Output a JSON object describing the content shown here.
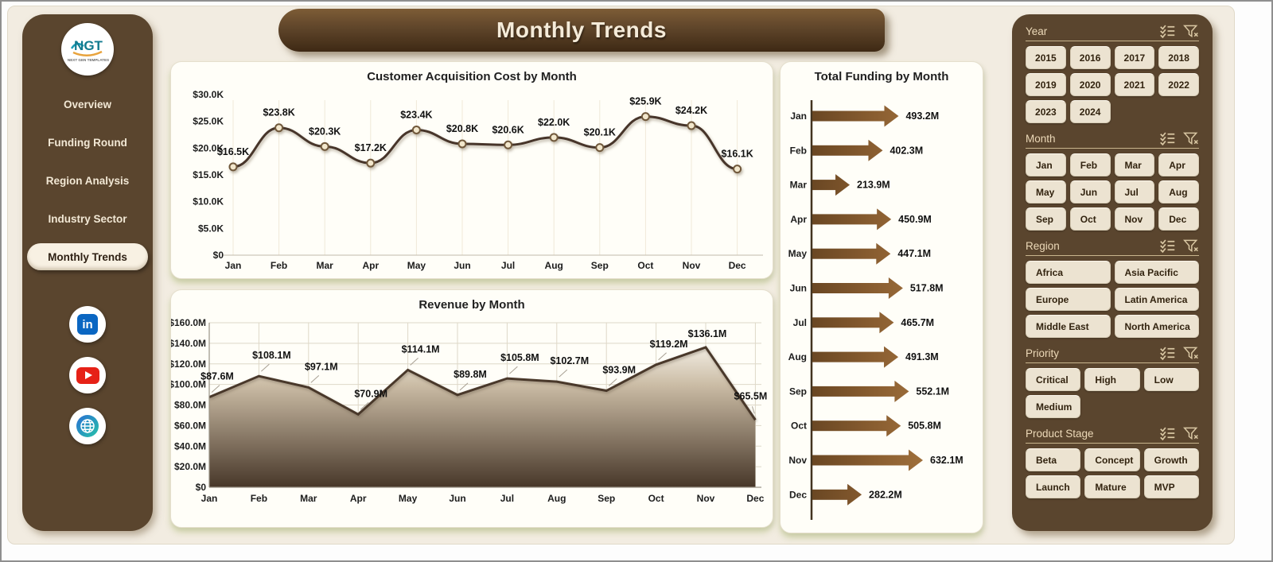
{
  "banner": {
    "title": "Monthly Trends"
  },
  "logo": {
    "text": "NGT",
    "caption": "NEXT GEN TEMPLATES"
  },
  "sidebar": {
    "items": [
      {
        "label": "Overview",
        "active": false
      },
      {
        "label": "Funding Round",
        "active": false
      },
      {
        "label": "Region Analysis",
        "active": false
      },
      {
        "label": "Industry Sector",
        "active": false
      },
      {
        "label": "Monthly Trends",
        "active": true
      }
    ],
    "social": [
      {
        "name": "linkedin",
        "glyph": "in"
      },
      {
        "name": "youtube"
      },
      {
        "name": "website"
      }
    ]
  },
  "filters": {
    "sections": [
      {
        "name": "Year",
        "cols": 4,
        "centered": true,
        "options": [
          "2015",
          "2016",
          "2017",
          "2018",
          "2019",
          "2020",
          "2021",
          "2022",
          "2023",
          "2024"
        ]
      },
      {
        "name": "Month",
        "cols": 4,
        "centered": false,
        "options": [
          "Jan",
          "Feb",
          "Mar",
          "Apr",
          "May",
          "Jun",
          "Jul",
          "Aug",
          "Sep",
          "Oct",
          "Nov",
          "Dec"
        ]
      },
      {
        "name": "Region",
        "cols": 2,
        "centered": false,
        "options": [
          "Africa",
          "Asia Pacific",
          "Europe",
          "Latin America",
          "Middle East",
          "North America"
        ]
      },
      {
        "name": "Priority",
        "cols": 3,
        "centered": false,
        "options": [
          "Critical",
          "High",
          "Low",
          "Medium"
        ]
      },
      {
        "name": "Product Stage",
        "cols": 3,
        "centered": false,
        "options": [
          "Beta",
          "Concept",
          "Growth",
          "Launch",
          "Mature",
          "MVP"
        ]
      }
    ]
  },
  "chart_data": [
    {
      "type": "line",
      "title": "Customer Acquisition Cost by Month",
      "categories": [
        "Jan",
        "Feb",
        "Mar",
        "Apr",
        "May",
        "Jun",
        "Jul",
        "Aug",
        "Sep",
        "Oct",
        "Nov",
        "Dec"
      ],
      "values": [
        16.5,
        23.8,
        20.3,
        17.2,
        23.4,
        20.8,
        20.6,
        22.0,
        20.1,
        25.9,
        24.2,
        16.1
      ],
      "value_labels": [
        "$16.5K",
        "$23.8K",
        "$20.3K",
        "$17.2K",
        "$23.4K",
        "$20.8K",
        "$20.6K",
        "$22.0K",
        "$20.1K",
        "$25.9K",
        "$24.2K",
        "$16.1K"
      ],
      "unit": "USD thousands",
      "y_ticks": [
        "$0",
        "$5.0K",
        "$10.0K",
        "$15.0K",
        "$20.0K",
        "$25.0K",
        "$30.0K"
      ],
      "ylim": [
        0,
        30
      ],
      "grid": "vertical",
      "line_color": "#46342a",
      "marker_fill": "#f2e7cc"
    },
    {
      "type": "area",
      "title": "Revenue by Month",
      "categories": [
        "Jan",
        "Feb",
        "Mar",
        "Apr",
        "May",
        "Jun",
        "Jul",
        "Aug",
        "Sep",
        "Oct",
        "Nov",
        "Dec"
      ],
      "values": [
        87.6,
        108.1,
        97.1,
        70.9,
        114.1,
        89.8,
        105.8,
        102.7,
        93.9,
        119.2,
        136.1,
        65.5
      ],
      "value_labels": [
        "$87.6M",
        "$108.1M",
        "$97.1M",
        "$70.9M",
        "$114.1M",
        "$89.8M",
        "$105.8M",
        "$102.7M",
        "$93.9M",
        "$119.2M",
        "$136.1M",
        "$65.5M"
      ],
      "unit": "USD millions",
      "y_ticks": [
        "$0",
        "$20.0M",
        "$40.0M",
        "$60.0M",
        "$80.0M",
        "$100.0M",
        "$120.0M",
        "$140.0M",
        "$160.0M"
      ],
      "ylim": [
        0,
        160
      ],
      "grid": "both",
      "line_color": "#4a382b",
      "fill_gradient": [
        "#fbf8f1",
        "#cabba4",
        "#473729"
      ]
    },
    {
      "type": "bar",
      "orientation": "horizontal",
      "title": "Total Funding by Month",
      "categories": [
        "Jan",
        "Feb",
        "Mar",
        "Apr",
        "May",
        "Jun",
        "Jul",
        "Aug",
        "Sep",
        "Oct",
        "Nov",
        "Dec"
      ],
      "values": [
        493.2,
        402.3,
        213.9,
        450.9,
        447.1,
        517.8,
        465.7,
        491.3,
        552.1,
        505.8,
        632.1,
        282.2
      ],
      "value_labels": [
        "493.2M",
        "402.3M",
        "213.9M",
        "450.9M",
        "447.1M",
        "517.8M",
        "465.7M",
        "491.3M",
        "552.1M",
        "505.8M",
        "632.1M",
        "282.2M"
      ],
      "unit": "USD millions",
      "xlim": [
        0,
        650
      ],
      "bar_color": "#8a5c30"
    }
  ],
  "colors": {
    "panel_brown": "#5a452e",
    "background_beige": "#f2ece1",
    "button_cream": "#ece3d1",
    "banner_text": "#f5ebd9",
    "accent_green_shadow": "#cfe0ac"
  }
}
